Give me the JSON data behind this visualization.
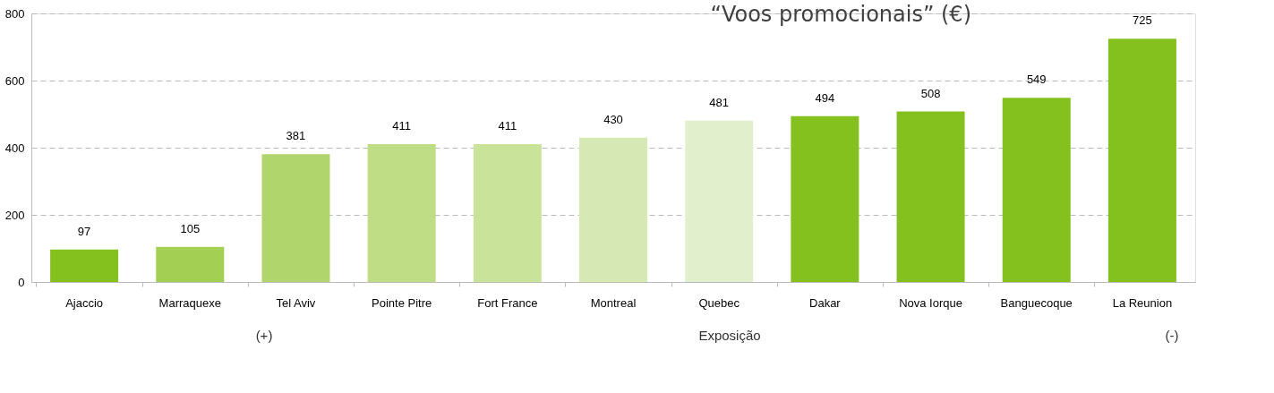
{
  "chart_data": {
    "type": "bar",
    "title": "“Voos promocionais” (€)",
    "xlabel": "Exposição",
    "categories": [
      "Ajaccio",
      "Marraquexe",
      "Tel Aviv",
      "Pointe Pitre",
      "Fort France",
      "Montreal",
      "Quebec",
      "Dakar",
      "Nova Iorque",
      "Banguecoque",
      "La Reunion"
    ],
    "values": [
      97,
      105,
      381,
      411,
      411,
      430,
      481,
      494,
      508,
      549,
      725
    ],
    "colors": [
      "#84c11e",
      "#a3d053",
      "#b0d56c",
      "#bedd84",
      "#c9e39b",
      "#d6e9b5",
      "#e2efcd",
      "#84c11e",
      "#84c11e",
      "#84c11e",
      "#84c11e"
    ],
    "ylim": [
      0,
      800
    ],
    "yticks": [
      0,
      200,
      400,
      600,
      800
    ],
    "grid": "y",
    "data_labels": true,
    "annotations": [
      "(+)",
      "(-)"
    ]
  }
}
